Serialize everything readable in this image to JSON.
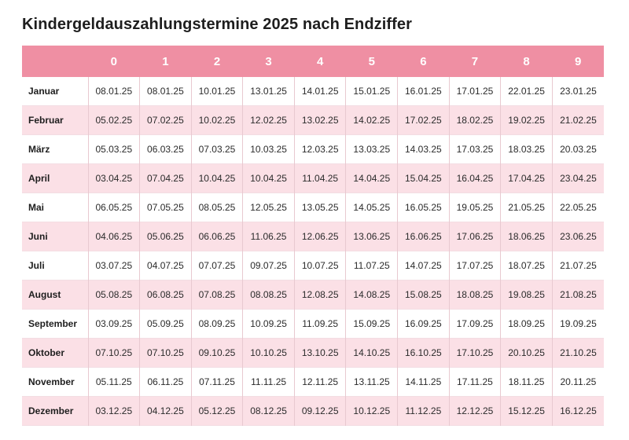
{
  "title": "Kindergeldauszahlungstermine 2025 nach Endziffer",
  "columns": [
    "0",
    "1",
    "2",
    "3",
    "4",
    "5",
    "6",
    "7",
    "8",
    "9"
  ],
  "rows": [
    {
      "month": "Januar",
      "dates": [
        "08.01.25",
        "08.01.25",
        "10.01.25",
        "13.01.25",
        "14.01.25",
        "15.01.25",
        "16.01.25",
        "17.01.25",
        "22.01.25",
        "23.01.25"
      ]
    },
    {
      "month": "Februar",
      "dates": [
        "05.02.25",
        "07.02.25",
        "10.02.25",
        "12.02.25",
        "13.02.25",
        "14.02.25",
        "17.02.25",
        "18.02.25",
        "19.02.25",
        "21.02.25"
      ]
    },
    {
      "month": "März",
      "dates": [
        "05.03.25",
        "06.03.25",
        "07.03.25",
        "10.03.25",
        "12.03.25",
        "13.03.25",
        "14.03.25",
        "17.03.25",
        "18.03.25",
        "20.03.25"
      ]
    },
    {
      "month": "April",
      "dates": [
        "03.04.25",
        "07.04.25",
        "10.04.25",
        "10.04.25",
        "11.04.25",
        "14.04.25",
        "15.04.25",
        "16.04.25",
        "17.04.25",
        "23.04.25"
      ]
    },
    {
      "month": "Mai",
      "dates": [
        "06.05.25",
        "07.05.25",
        "08.05.25",
        "12.05.25",
        "13.05.25",
        "14.05.25",
        "16.05.25",
        "19.05.25",
        "21.05.25",
        "22.05.25"
      ]
    },
    {
      "month": "Juni",
      "dates": [
        "04.06.25",
        "05.06.25",
        "06.06.25",
        "11.06.25",
        "12.06.25",
        "13.06.25",
        "16.06.25",
        "17.06.25",
        "18.06.25",
        "23.06.25"
      ]
    },
    {
      "month": "Juli",
      "dates": [
        "03.07.25",
        "04.07.25",
        "07.07.25",
        "09.07.25",
        "10.07.25",
        "11.07.25",
        "14.07.25",
        "17.07.25",
        "18.07.25",
        "21.07.25"
      ]
    },
    {
      "month": "August",
      "dates": [
        "05.08.25",
        "06.08.25",
        "07.08.25",
        "08.08.25",
        "12.08.25",
        "14.08.25",
        "15.08.25",
        "18.08.25",
        "19.08.25",
        "21.08.25"
      ]
    },
    {
      "month": "September",
      "dates": [
        "03.09.25",
        "05.09.25",
        "08.09.25",
        "10.09.25",
        "11.09.25",
        "15.09.25",
        "16.09.25",
        "17.09.25",
        "18.09.25",
        "19.09.25"
      ]
    },
    {
      "month": "Oktober",
      "dates": [
        "07.10.25",
        "07.10.25",
        "09.10.25",
        "10.10.25",
        "13.10.25",
        "14.10.25",
        "16.10.25",
        "17.10.25",
        "20.10.25",
        "21.10.25"
      ]
    },
    {
      "month": "November",
      "dates": [
        "05.11.25",
        "06.11.25",
        "07.11.25",
        "11.11.25",
        "12.11.25",
        "13.11.25",
        "14.11.25",
        "17.11.25",
        "18.11.25",
        "20.11.25"
      ]
    },
    {
      "month": "Dezember",
      "dates": [
        "03.12.25",
        "04.12.25",
        "05.12.25",
        "08.12.25",
        "09.12.25",
        "10.12.25",
        "11.12.25",
        "12.12.25",
        "15.12.25",
        "16.12.25"
      ]
    }
  ],
  "colors": {
    "header_bg": "#ef8fa3",
    "header_text": "#ffffff",
    "stripe": "#fbe0e6"
  }
}
